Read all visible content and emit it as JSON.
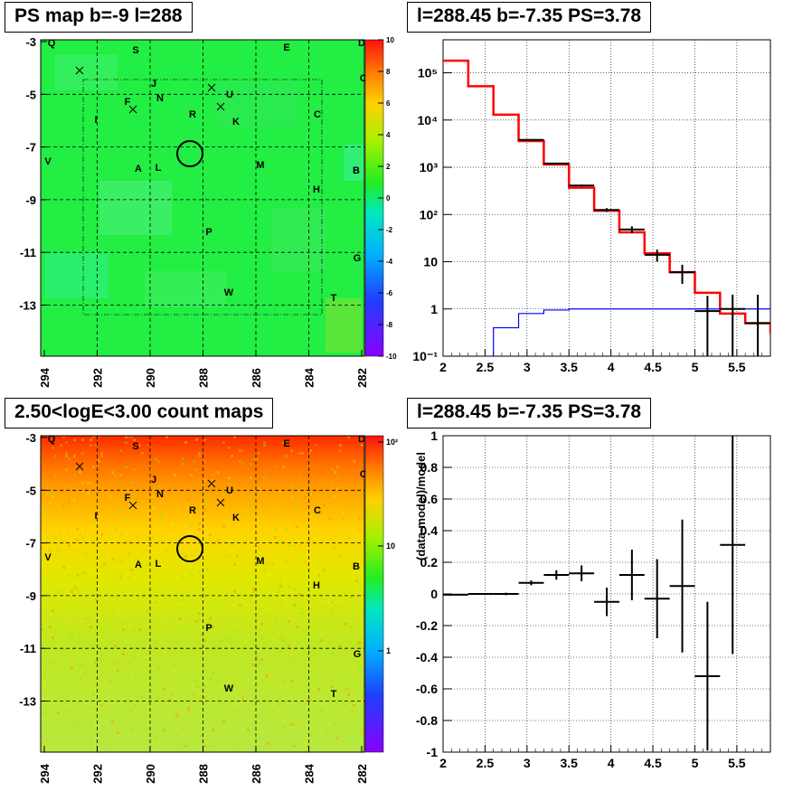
{
  "panels": {
    "ps_map": {
      "title": "PS map b=-9 l=288",
      "yticks": [
        "-3",
        "-5",
        "-7",
        "-9",
        "-11",
        "-13"
      ],
      "xticks": [
        "294",
        "292",
        "290",
        "288",
        "286",
        "284",
        "282"
      ],
      "colorbar_ticks": [
        "10",
        "8",
        "6",
        "4",
        "2",
        "0",
        "-2",
        "-4",
        "-6",
        "-8",
        "-10"
      ],
      "colors": {
        "background": "#22ee44"
      }
    },
    "spectrum": {
      "title": "l=288.45 b=-7.35 PS=3.78"
    },
    "count_map": {
      "title": "2.50<logE<3.00 count maps",
      "yticks": [
        "-3",
        "-5",
        "-7",
        "-9",
        "-11",
        "-13"
      ],
      "xticks": [
        "294",
        "292",
        "290",
        "288",
        "286",
        "284",
        "282"
      ],
      "colorbar_ticks": [
        "10²",
        "10",
        "1"
      ]
    },
    "residual": {
      "title": "l=288.45 b=-7.35 PS=3.78"
    }
  },
  "sources": [
    {
      "label": "Q"
    },
    {
      "label": "S"
    },
    {
      "label": "E"
    },
    {
      "label": "D"
    },
    {
      "label": "O"
    },
    {
      "label": "J"
    },
    {
      "label": "N"
    },
    {
      "label": "F"
    },
    {
      "label": "U"
    },
    {
      "label": "I"
    },
    {
      "label": "R"
    },
    {
      "label": "K"
    },
    {
      "label": "C"
    },
    {
      "label": "V"
    },
    {
      "label": "A"
    },
    {
      "label": "L"
    },
    {
      "label": "M"
    },
    {
      "label": "B"
    },
    {
      "label": "H"
    },
    {
      "label": "P"
    },
    {
      "label": "G"
    },
    {
      "label": "W"
    },
    {
      "label": "T"
    }
  ],
  "chart_data": [
    {
      "type": "line",
      "title": "l=288.45 b=-7.35 PS=3.78",
      "xlabel": "",
      "ylabel": "",
      "yscale": "log",
      "xlim": [
        2,
        5.9
      ],
      "ylim": [
        0.1,
        500000
      ],
      "xticks": [
        "2",
        "2.5",
        "3",
        "3.5",
        "4",
        "4.5",
        "5",
        "5.5"
      ],
      "yticks": [
        "10⁻¹",
        "1",
        "10",
        "10²",
        "10³",
        "10⁴",
        "10⁵"
      ],
      "grid": true,
      "series": [
        {
          "color": "#ff0000",
          "style": "step",
          "edges": [
            2.0,
            2.3,
            2.6,
            2.9,
            3.2,
            3.5,
            3.8,
            4.1,
            4.4,
            4.7,
            5.0,
            5.3,
            5.6,
            5.9
          ],
          "values": [
            180000,
            52000,
            13000,
            3600,
            1150,
            370,
            120,
            42,
            15,
            6,
            2.2,
            0.8,
            0.5,
            0.3
          ]
        },
        {
          "color": "#0000ff",
          "style": "step",
          "edges": [
            2.6,
            2.9,
            3.2,
            3.5,
            3.8,
            4.1,
            4.4,
            4.7,
            5.0,
            5.3,
            5.6,
            5.9
          ],
          "values": [
            0.4,
            0.8,
            0.95,
            1.0,
            1.0,
            1.0,
            1.0,
            1.0,
            1.0,
            1.0,
            1.0
          ]
        },
        {
          "color": "#000000",
          "style": "errorbar",
          "points": [
            {
              "x": 3.05,
              "y": 3800,
              "xerr": 0.15,
              "yerr": 60
            },
            {
              "x": 3.35,
              "y": 1200,
              "xerr": 0.15,
              "yerr": 35
            },
            {
              "x": 3.65,
              "y": 410,
              "xerr": 0.15,
              "yerr": 20
            },
            {
              "x": 3.95,
              "y": 125,
              "xerr": 0.15,
              "yerr": 11
            },
            {
              "x": 4.25,
              "y": 48,
              "xerr": 0.15,
              "yerr": 8
            },
            {
              "x": 4.55,
              "y": 14,
              "xerr": 0.15,
              "yerr": 4
            },
            {
              "x": 4.85,
              "y": 6,
              "xerr": 0.15,
              "yerr": 2.6
            },
            {
              "x": 5.15,
              "y": 0.9,
              "xerr": 0.15,
              "yerr": 1.0
            },
            {
              "x": 5.45,
              "y": 1.0,
              "xerr": 0.15,
              "yerr": 1.0
            },
            {
              "x": 5.75,
              "y": 0.5,
              "xerr": 0.15,
              "yerr": 1.5
            }
          ]
        }
      ]
    },
    {
      "type": "scatter",
      "title": "l=288.45 b=-7.35 PS=3.78",
      "xlabel": "",
      "ylabel": "(data-model)/model",
      "xlim": [
        2,
        5.9
      ],
      "ylim": [
        -1,
        1
      ],
      "xticks": [
        "2",
        "2.5",
        "3",
        "3.5",
        "4",
        "4.5",
        "5",
        "5.5"
      ],
      "yticks": [
        "-1",
        "-0.8",
        "-0.6",
        "-0.4",
        "-0.2",
        "0",
        "0.2",
        "0.4",
        "0.6",
        "0.8",
        "1"
      ],
      "grid": true,
      "series": [
        {
          "color": "#000000",
          "style": "errorbar",
          "points": [
            {
              "x": 2.15,
              "y": -0.005,
              "xerr": 0.15,
              "yerr": 0.004
            },
            {
              "x": 2.45,
              "y": 0.0,
              "xerr": 0.15,
              "yerr": 0.005
            },
            {
              "x": 2.75,
              "y": 0.0,
              "xerr": 0.15,
              "yerr": 0.008
            },
            {
              "x": 3.05,
              "y": 0.07,
              "xerr": 0.15,
              "yerr": 0.015
            },
            {
              "x": 3.35,
              "y": 0.12,
              "xerr": 0.15,
              "yerr": 0.03
            },
            {
              "x": 3.65,
              "y": 0.13,
              "xerr": 0.15,
              "yerr": 0.05
            },
            {
              "x": 3.95,
              "y": -0.05,
              "xerr": 0.15,
              "yerr": 0.09
            },
            {
              "x": 4.25,
              "y": 0.12,
              "xerr": 0.15,
              "yerr": 0.16
            },
            {
              "x": 4.55,
              "y": -0.03,
              "xerr": 0.15,
              "yerr": 0.25
            },
            {
              "x": 4.85,
              "y": 0.05,
              "xerr": 0.15,
              "yerr": 0.42
            },
            {
              "x": 5.15,
              "y": -0.52,
              "xerr": 0.15,
              "yerr": 0.47
            },
            {
              "x": 5.45,
              "y": 0.31,
              "xerr": 0.15,
              "yerr": 0.69
            }
          ]
        }
      ]
    }
  ]
}
